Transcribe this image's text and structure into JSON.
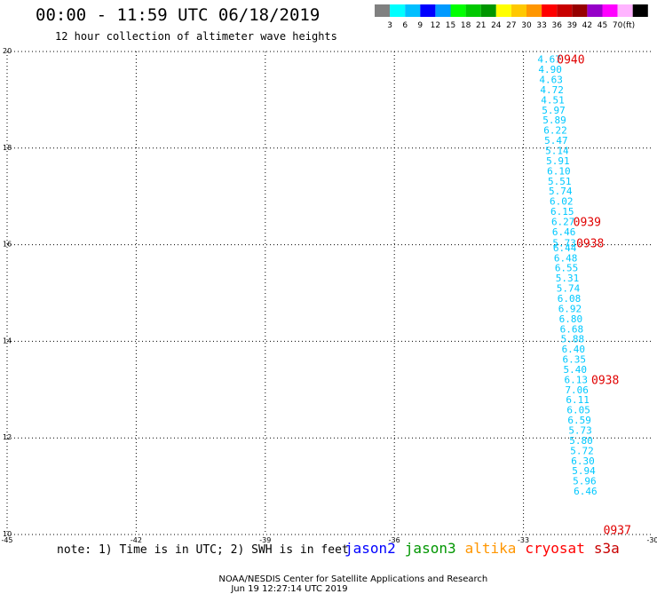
{
  "header": {
    "title": "00:00 - 11:59 UTC 06/18/2019",
    "subtitle": "12 hour collection of altimeter wave heights"
  },
  "colorbar": {
    "colors": [
      "#808080",
      "#00ffff",
      "#00bfff",
      "#0000ff",
      "#009aff",
      "#00ff00",
      "#00c800",
      "#009600",
      "#ffff00",
      "#ffc800",
      "#ff9600",
      "#ff0000",
      "#c80000",
      "#960000",
      "#9600c8",
      "#ff00ff",
      "#ffb4ff",
      "#000000"
    ],
    "labels": [
      "3",
      "6",
      "9",
      "12",
      "15",
      "18",
      "21",
      "24",
      "27",
      "30",
      "33",
      "36",
      "39",
      "42",
      "45",
      "70"
    ],
    "unit": "(ft)"
  },
  "chart_data": {
    "type": "scatter",
    "xlim": [
      -45,
      -30
    ],
    "ylim": [
      10,
      20
    ],
    "x_ticks": [
      "-45",
      "-42",
      "-39",
      "-36",
      "-33",
      "-30"
    ],
    "y_ticks": [
      "20",
      "18",
      "16",
      "14",
      "12",
      "10"
    ],
    "grid": true,
    "value_color": "#00c8ff",
    "time_color": "#e00000",
    "points": [
      {
        "x": -32.4,
        "y": 19.84,
        "v": "4.67"
      },
      {
        "x": -32.38,
        "y": 19.63,
        "v": "4.90"
      },
      {
        "x": -32.36,
        "y": 19.42,
        "v": "4.63"
      },
      {
        "x": -32.34,
        "y": 19.21,
        "v": "4.72"
      },
      {
        "x": -32.32,
        "y": 19.0,
        "v": "4.51"
      },
      {
        "x": -32.3,
        "y": 18.79,
        "v": "5.97"
      },
      {
        "x": -32.28,
        "y": 18.58,
        "v": "5.89"
      },
      {
        "x": -32.26,
        "y": 18.37,
        "v": "6.22"
      },
      {
        "x": -32.24,
        "y": 18.16,
        "v": "5.47"
      },
      {
        "x": -32.22,
        "y": 17.95,
        "v": "5.14"
      },
      {
        "x": -32.2,
        "y": 17.74,
        "v": "5.91"
      },
      {
        "x": -32.18,
        "y": 17.53,
        "v": "6.10"
      },
      {
        "x": -32.16,
        "y": 17.32,
        "v": "5.51"
      },
      {
        "x": -32.14,
        "y": 17.11,
        "v": "5.74"
      },
      {
        "x": -32.12,
        "y": 16.9,
        "v": "6.02"
      },
      {
        "x": -32.1,
        "y": 16.69,
        "v": "6.15"
      },
      {
        "x": -32.08,
        "y": 16.48,
        "v": "6.27"
      },
      {
        "x": -32.06,
        "y": 16.27,
        "v": "6.46"
      },
      {
        "x": -32.05,
        "y": 16.04,
        "v": "5.73"
      },
      {
        "x": -32.04,
        "y": 15.94,
        "v": "6.44"
      },
      {
        "x": -32.02,
        "y": 15.73,
        "v": "6.48"
      },
      {
        "x": -32.0,
        "y": 15.52,
        "v": "6.55"
      },
      {
        "x": -31.98,
        "y": 15.31,
        "v": "5.31"
      },
      {
        "x": -31.96,
        "y": 15.1,
        "v": "5.74"
      },
      {
        "x": -31.94,
        "y": 14.89,
        "v": "6.08"
      },
      {
        "x": -31.92,
        "y": 14.68,
        "v": "6.92"
      },
      {
        "x": -31.9,
        "y": 14.47,
        "v": "6.80"
      },
      {
        "x": -31.88,
        "y": 14.26,
        "v": "6.68"
      },
      {
        "x": -31.86,
        "y": 14.05,
        "v": "5.88"
      },
      {
        "x": -31.84,
        "y": 13.84,
        "v": "6.40"
      },
      {
        "x": -31.82,
        "y": 13.63,
        "v": "6.35"
      },
      {
        "x": -31.8,
        "y": 13.42,
        "v": "5.40"
      },
      {
        "x": -31.78,
        "y": 13.21,
        "v": "6.13"
      },
      {
        "x": -31.76,
        "y": 13.0,
        "v": "7.06"
      },
      {
        "x": -31.74,
        "y": 12.79,
        "v": "6.11"
      },
      {
        "x": -31.72,
        "y": 12.58,
        "v": "6.05"
      },
      {
        "x": -31.7,
        "y": 12.37,
        "v": "6.59"
      },
      {
        "x": -31.68,
        "y": 12.16,
        "v": "5.73"
      },
      {
        "x": -31.66,
        "y": 11.95,
        "v": "5.80"
      },
      {
        "x": -31.64,
        "y": 11.74,
        "v": "5.72"
      },
      {
        "x": -31.62,
        "y": 11.53,
        "v": "6.30"
      },
      {
        "x": -31.6,
        "y": 11.32,
        "v": "5.94"
      },
      {
        "x": -31.58,
        "y": 11.11,
        "v": "5.96"
      },
      {
        "x": -31.56,
        "y": 10.9,
        "v": "6.46"
      }
    ],
    "time_labels": [
      {
        "x": -31.9,
        "y": 19.84,
        "t": "0940"
      },
      {
        "x": -31.52,
        "y": 16.48,
        "t": "0939"
      },
      {
        "x": -31.45,
        "y": 16.04,
        "t": "0938"
      },
      {
        "x": -31.1,
        "y": 13.21,
        "t": "0938"
      },
      {
        "x": -30.82,
        "y": 10.1,
        "t": "0937"
      }
    ]
  },
  "note": "note: 1) Time is in UTC; 2) SWH is in feet",
  "satellites": [
    {
      "name": "jason2",
      "color": "#0000ff"
    },
    {
      "name": "jason3",
      "color": "#009600"
    },
    {
      "name": "altika",
      "color": "#ff9600"
    },
    {
      "name": "cryosat",
      "color": "#ff0000"
    },
    {
      "name": "s3a",
      "color": "#c80000"
    }
  ],
  "footer": {
    "org": "NOAA/NESDIS Center for Satellite Applications and Research",
    "timestamp": "Jun 19 12:27:14 UTC 2019"
  }
}
